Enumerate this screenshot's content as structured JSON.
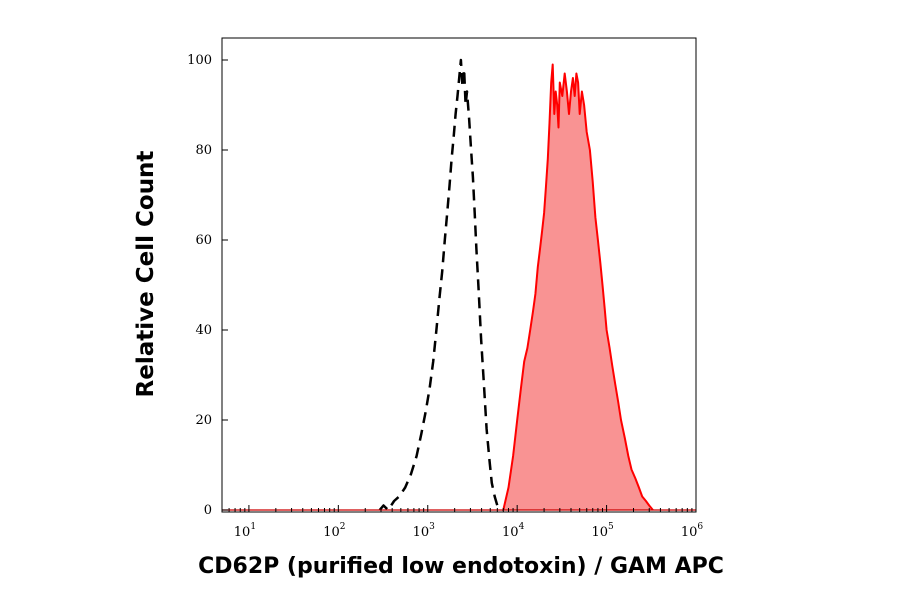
{
  "chart_data": {
    "type": "area",
    "title": "",
    "xlabel": "CD62P (purified low endotoxin) / GAM APC",
    "ylabel": "Relative Cell Count",
    "xscale": "log",
    "xlim": [
      5,
      1000000
    ],
    "ylim": [
      0,
      100
    ],
    "xticks": [
      {
        "base": "10",
        "exp": "1",
        "value": 10
      },
      {
        "base": "10",
        "exp": "2",
        "value": 100
      },
      {
        "base": "10",
        "exp": "3",
        "value": 1000
      },
      {
        "base": "10",
        "exp": "4",
        "value": 10000
      },
      {
        "base": "10",
        "exp": "5",
        "value": 100000
      },
      {
        "base": "10",
        "exp": "6",
        "value": 1000000
      }
    ],
    "yticks": [
      "0",
      "20",
      "40",
      "60",
      "80",
      "100"
    ],
    "grid": false,
    "series": [
      {
        "style": "dashed",
        "color": "#000000",
        "fill": "none",
        "x": [
          290,
          320,
          360,
          420,
          480,
          560,
          650,
          750,
          850,
          950,
          1050,
          1150,
          1250,
          1350,
          1450,
          1550,
          1650,
          1750,
          1850,
          1950,
          2050,
          2150,
          2250,
          2350,
          2450,
          2550,
          2650,
          2750,
          2900,
          3050,
          3200,
          3350,
          3500,
          3700,
          3950,
          4250,
          4550,
          4900,
          5200,
          5600,
          6000,
          6500,
          7000
        ],
        "y": [
          0,
          1,
          0,
          2,
          3,
          5,
          8,
          12,
          17,
          22,
          27,
          33,
          40,
          47,
          53,
          60,
          66,
          72,
          78,
          83,
          88,
          92,
          96,
          100,
          94,
          98,
          90,
          93,
          87,
          80,
          74,
          66,
          58,
          49,
          38,
          28,
          18,
          11,
          6,
          3,
          1,
          0.5,
          0
        ]
      },
      {
        "style": "solid",
        "color": "#ff0000",
        "fill": "#f99393",
        "x": [
          7000,
          8000,
          9000,
          10000,
          11000,
          12000,
          13000,
          14000,
          15000,
          16000,
          17000,
          18000,
          19000,
          20000,
          21000,
          22000,
          23000,
          24000,
          25000,
          26000,
          27000,
          28000,
          29000,
          30000,
          32000,
          34000,
          36000,
          38000,
          40000,
          42000,
          44000,
          46000,
          48000,
          50000,
          53000,
          56000,
          60000,
          65000,
          70000,
          75000,
          80000,
          85000,
          90000,
          95000,
          100000,
          108000,
          116000,
          125000,
          135000,
          145000,
          160000,
          175000,
          190000,
          210000,
          230000,
          250000,
          275000,
          300000,
          330000
        ],
        "y": [
          0,
          5,
          12,
          20,
          27,
          33,
          36,
          40,
          44,
          48,
          54,
          58,
          62,
          66,
          72,
          78,
          86,
          95,
          99,
          88,
          93,
          90,
          85,
          95,
          92,
          97,
          93,
          88,
          93,
          96,
          92,
          97,
          95,
          88,
          93,
          90,
          84,
          80,
          73,
          65,
          60,
          55,
          50,
          45,
          40,
          36,
          32,
          28,
          24,
          20,
          16,
          12,
          9,
          7,
          5,
          3,
          2,
          1,
          0
        ]
      }
    ]
  }
}
